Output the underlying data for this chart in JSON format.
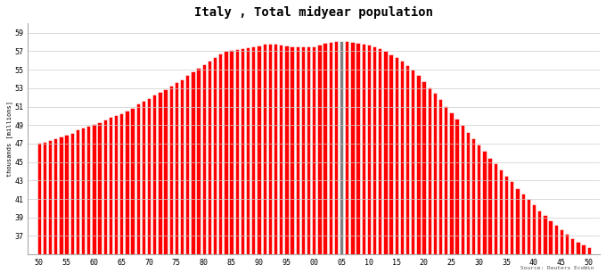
{
  "title": "Italy , Total midyear population",
  "ylabel": "thousands [millions]",
  "source": "Source: Reuters EcoWin",
  "bar_color": "#ff0000",
  "highlight_color": "#808080",
  "background_color": "#ffffff",
  "grid_color": "#cccccc",
  "years": [
    1950,
    1951,
    1952,
    1953,
    1954,
    1955,
    1956,
    1957,
    1958,
    1959,
    1960,
    1961,
    1962,
    1963,
    1964,
    1965,
    1966,
    1967,
    1968,
    1969,
    1970,
    1971,
    1972,
    1973,
    1974,
    1975,
    1976,
    1977,
    1978,
    1979,
    1980,
    1981,
    1982,
    1983,
    1984,
    1985,
    1986,
    1987,
    1988,
    1989,
    1990,
    1991,
    1992,
    1993,
    1994,
    1995,
    1996,
    1997,
    1998,
    1999,
    2000,
    2001,
    2002,
    2003,
    2004,
    2005,
    2006,
    2007,
    2008,
    2009,
    2010,
    2011,
    2012,
    2013,
    2014,
    2015,
    2016,
    2017,
    2018,
    2019,
    2020,
    2021,
    2022,
    2023,
    2024,
    2025,
    2026,
    2027,
    2028,
    2029,
    2030,
    2031,
    2032,
    2033,
    2034,
    2035,
    2036,
    2037,
    2038,
    2039,
    2040,
    2041,
    2042,
    2043,
    2044,
    2045,
    2046,
    2047,
    2048,
    2049,
    2050
  ],
  "population": [
    47.1,
    47.2,
    47.4,
    47.6,
    47.8,
    48.0,
    48.2,
    48.5,
    48.7,
    48.9,
    49.1,
    49.3,
    49.6,
    49.9,
    50.1,
    50.3,
    50.6,
    50.9,
    51.3,
    51.6,
    51.9,
    52.3,
    52.6,
    52.9,
    53.3,
    53.7,
    54.0,
    54.4,
    54.8,
    55.2,
    55.6,
    56.0,
    56.4,
    56.8,
    57.0,
    57.1,
    57.2,
    57.3,
    57.4,
    57.5,
    57.6,
    57.8,
    57.8,
    57.8,
    57.7,
    57.6,
    57.5,
    57.5,
    57.5,
    57.5,
    57.5,
    57.7,
    57.9,
    58.0,
    58.1,
    58.1,
    58.1,
    58.0,
    57.9,
    57.8,
    57.7,
    57.5,
    57.3,
    57.0,
    56.7,
    56.4,
    56.0,
    55.5,
    55.0,
    54.4,
    53.8,
    53.1,
    52.5,
    51.8,
    51.1,
    50.4,
    49.7,
    49.0,
    48.3,
    47.6,
    46.9,
    46.2,
    45.5,
    44.9,
    44.2,
    43.5,
    42.9,
    42.2,
    41.6,
    41.0,
    40.4,
    39.8,
    39.3,
    38.7,
    38.2,
    37.7,
    37.2,
    36.8,
    36.4,
    36.1,
    35.8
  ],
  "highlight_year": 2005,
  "ylim_min": 35,
  "ylim_max": 60,
  "yticks": [
    37,
    39,
    41,
    43,
    45,
    47,
    49,
    51,
    53,
    55,
    57,
    59
  ],
  "xtick_years": [
    1950,
    1955,
    1960,
    1965,
    1970,
    1975,
    1980,
    1985,
    1990,
    1995,
    2000,
    2005,
    2010,
    2015,
    2020,
    2025,
    2030,
    2035,
    2040,
    2045,
    2050
  ],
  "xtick_labels": [
    "50",
    "55",
    "60",
    "65",
    "70",
    "75",
    "80",
    "85",
    "90",
    "95",
    "00",
    "05",
    "10",
    "15",
    "20",
    "25",
    "30",
    "35",
    "40",
    "45",
    "50"
  ]
}
